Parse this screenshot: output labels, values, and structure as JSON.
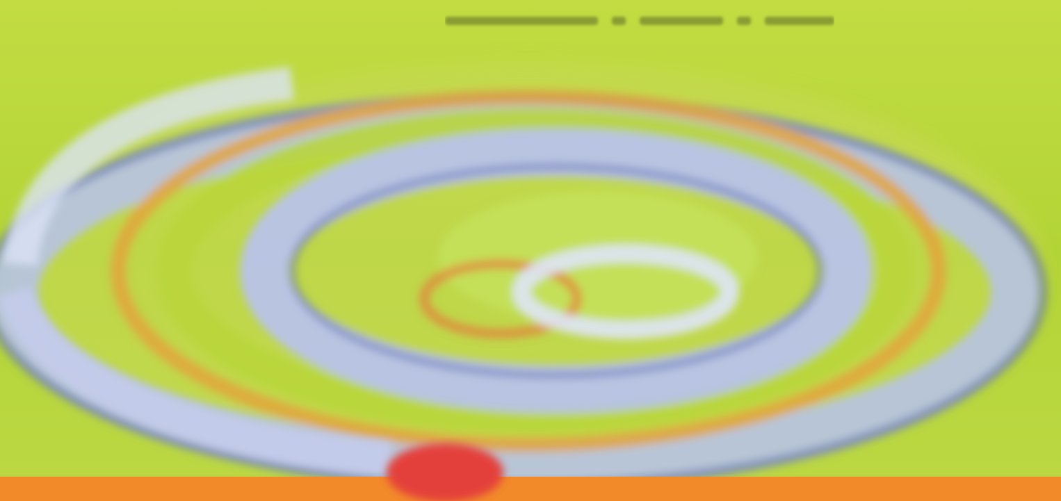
{
  "palette": {
    "background": "#b6d63a",
    "background_light": "#d3e85a",
    "band": "#f28a2a",
    "swirl_blue": "#b9c4f0",
    "swirl_blue_dark": "#5a6aa8",
    "swirl_light": "#e3eaf8",
    "swirl_orange": "#e6a23a",
    "dot": "#e4403a"
  },
  "icons": {
    "swirl": "swirl-graphic",
    "dot": "red-dot"
  }
}
